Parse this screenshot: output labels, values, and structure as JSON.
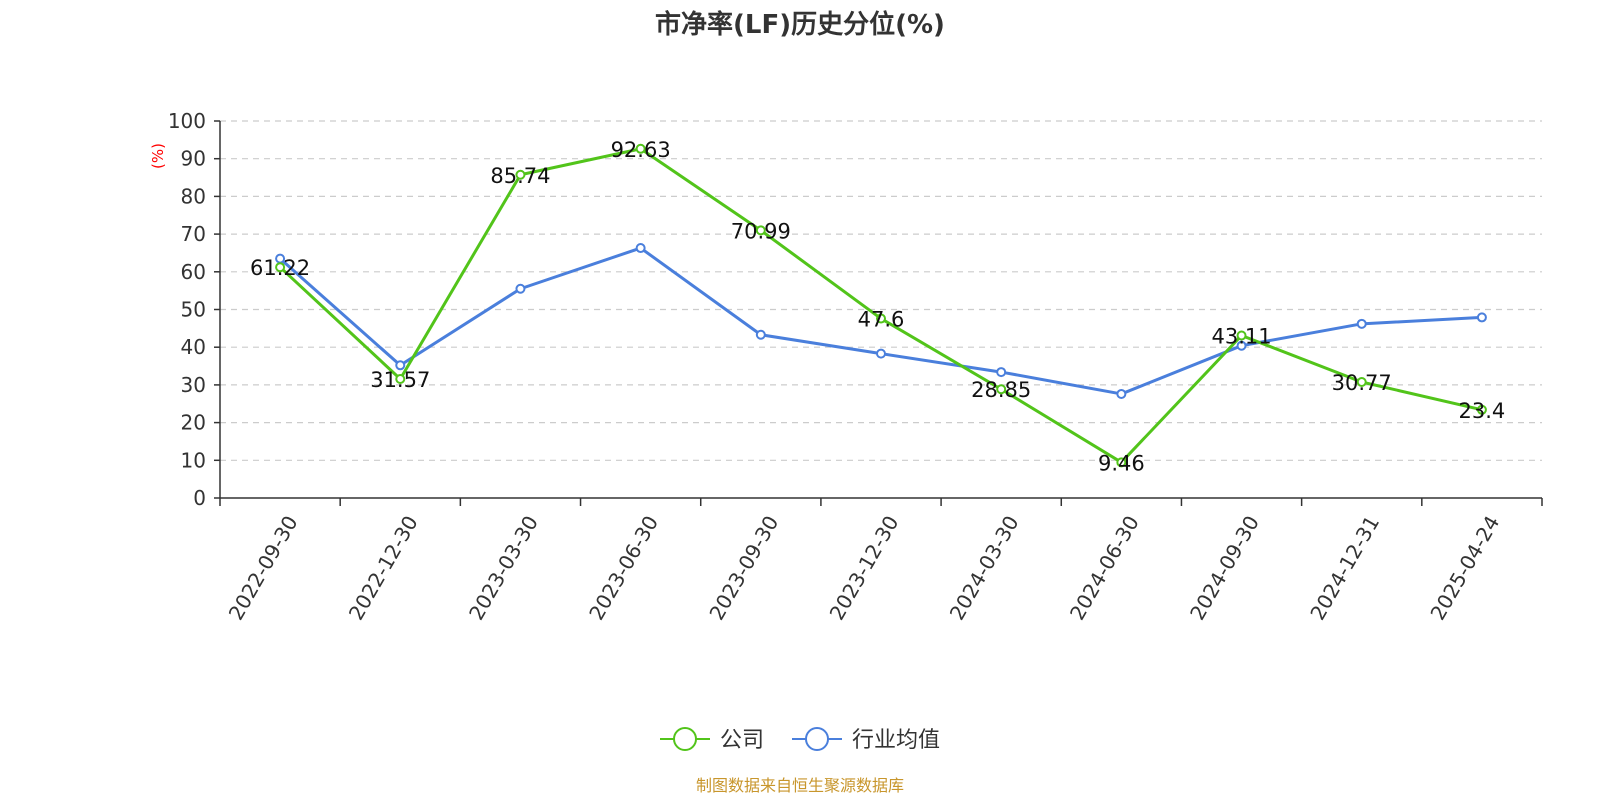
{
  "chart_data": {
    "type": "line",
    "title": "市净率(LF)历史分位(%)",
    "y_unit_label": "(%)",
    "ylim": [
      0,
      100
    ],
    "y_ticks": [
      0,
      10,
      20,
      30,
      40,
      50,
      60,
      70,
      80,
      90,
      100
    ],
    "grid": true,
    "legend_position": "bottom-center",
    "categories": [
      "2022-09-30",
      "2022-12-30",
      "2023-03-30",
      "2023-06-30",
      "2023-09-30",
      "2023-12-30",
      "2024-03-30",
      "2024-06-30",
      "2024-09-30",
      "2024-12-31",
      "2025-04-24"
    ],
    "series": [
      {
        "name": "公司",
        "color": "#52c41a",
        "values": [
          61.22,
          31.57,
          85.74,
          92.63,
          70.99,
          47.6,
          28.85,
          9.46,
          43.11,
          30.77,
          23.4
        ],
        "data_labels": [
          "61.22",
          "31.57",
          "85.74",
          "92.63",
          "70.99",
          "47.6",
          "28.85",
          "9.46",
          "43.11",
          "30.77",
          "23.4"
        ]
      },
      {
        "name": "行业均值",
        "color": "#4a7fdc",
        "values": [
          63.5,
          35.2,
          55.5,
          66.3,
          43.3,
          38.3,
          33.4,
          27.6,
          40.4,
          46.2,
          47.9
        ]
      }
    ]
  },
  "source_text": "制图数据来自恒生聚源数据库",
  "colors": {
    "title": "#333333",
    "axis": "#333333",
    "grid": "#cccccc",
    "unit_label": "#ff0000",
    "source": "#c8962c"
  }
}
